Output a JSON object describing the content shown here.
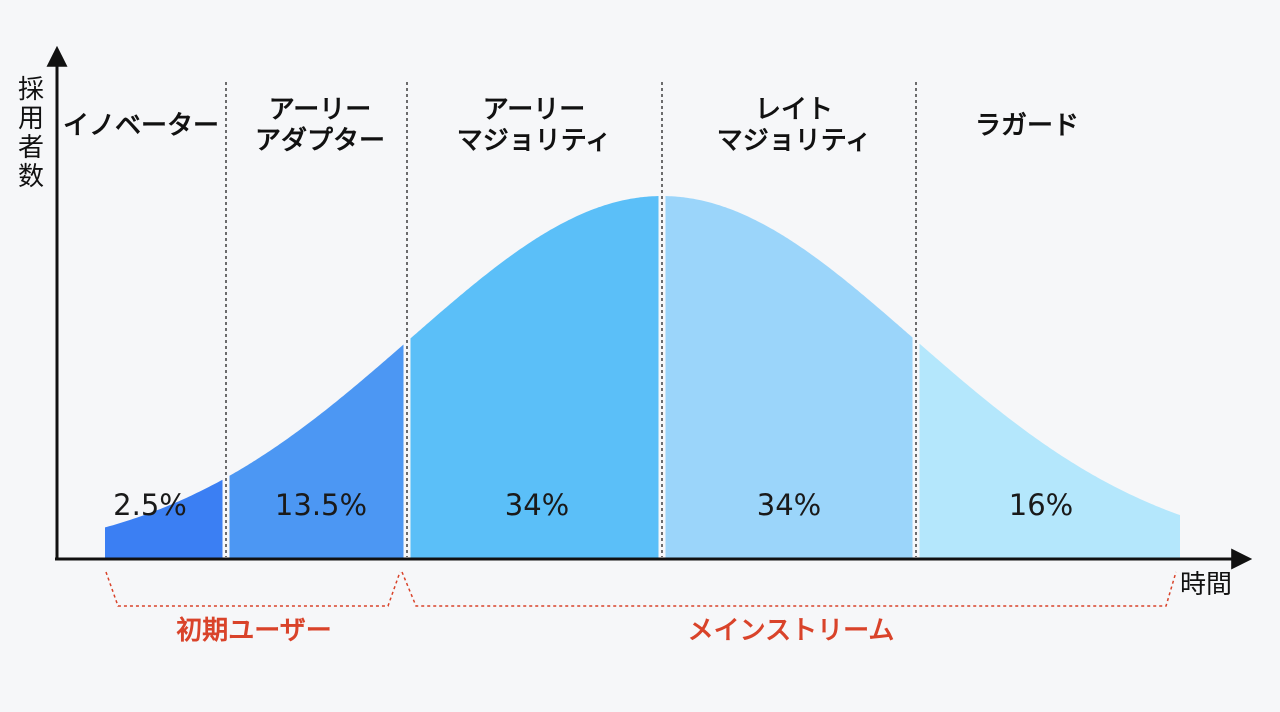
{
  "y_label": "採用者数",
  "x_label": "時間",
  "segments": [
    {
      "name": "イノベーター",
      "percent": "2.5%",
      "color": "#3b7ff3"
    },
    {
      "name": "アーリー\nアダプター",
      "percent": "13.5%",
      "color": "#4c97f3"
    },
    {
      "name": "アーリー\nマジョリティ",
      "percent": "34%",
      "color": "#5bbff8"
    },
    {
      "name": "レイト\nマジョリティ",
      "percent": "34%",
      "color": "#9bd5fa"
    },
    {
      "name": "ラガード",
      "percent": "16%",
      "color": "#b4e7fc"
    }
  ],
  "groups": [
    {
      "label": "初期ユーザー",
      "color": "#d9432a"
    },
    {
      "label": "メインストリーム",
      "color": "#d9432a"
    }
  ]
}
